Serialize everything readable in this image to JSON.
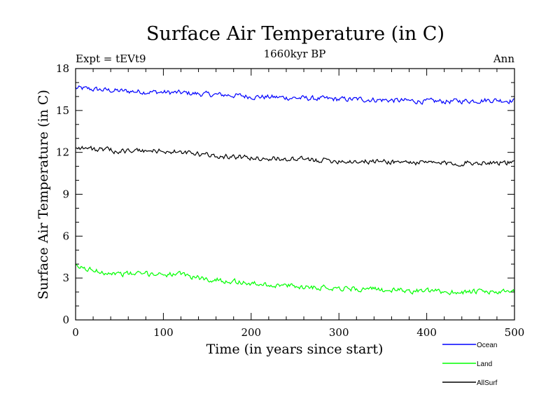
{
  "chart_data": {
    "type": "line",
    "title": "Surface Air Temperature (in C)",
    "subtitle": "1660kyr BP",
    "experiment_label": "Expt = tEVt9",
    "season_label": "Ann",
    "xlabel": "Time (in years since start)",
    "ylabel": "Surface Air Temperature (in C)",
    "xlim": [
      0,
      500
    ],
    "ylim": [
      0,
      18
    ],
    "x_ticks": [
      "0",
      "100",
      "200",
      "300",
      "400",
      "500"
    ],
    "y_ticks": [
      "0",
      "3",
      "6",
      "9",
      "12",
      "15",
      "18"
    ],
    "x": [
      0,
      25,
      50,
      75,
      100,
      125,
      150,
      175,
      200,
      225,
      250,
      275,
      300,
      325,
      350,
      375,
      400,
      425,
      450,
      475,
      500
    ],
    "series": [
      {
        "name": "Ocean",
        "color": "#0000ff",
        "values": [
          16.6,
          16.5,
          16.4,
          16.35,
          16.3,
          16.25,
          16.15,
          16.1,
          16.0,
          15.95,
          15.9,
          15.85,
          15.8,
          15.8,
          15.75,
          15.7,
          15.65,
          15.65,
          15.7,
          15.75,
          15.7
        ]
      },
      {
        "name": "Land",
        "color": "#00ff00",
        "values": [
          3.8,
          3.5,
          3.3,
          3.3,
          3.3,
          3.2,
          2.9,
          2.8,
          2.6,
          2.5,
          2.4,
          2.35,
          2.3,
          2.2,
          2.15,
          2.1,
          2.05,
          2.0,
          2.0,
          2.0,
          1.95
        ]
      },
      {
        "name": "AllSurf",
        "color": "#000000",
        "values": [
          12.4,
          12.2,
          12.1,
          12.1,
          12.1,
          11.95,
          11.8,
          11.7,
          11.6,
          11.55,
          11.5,
          11.45,
          11.4,
          11.35,
          11.35,
          11.3,
          11.25,
          11.2,
          11.25,
          11.3,
          11.25
        ]
      }
    ],
    "grid": false,
    "legend_position": "bottom-right"
  }
}
